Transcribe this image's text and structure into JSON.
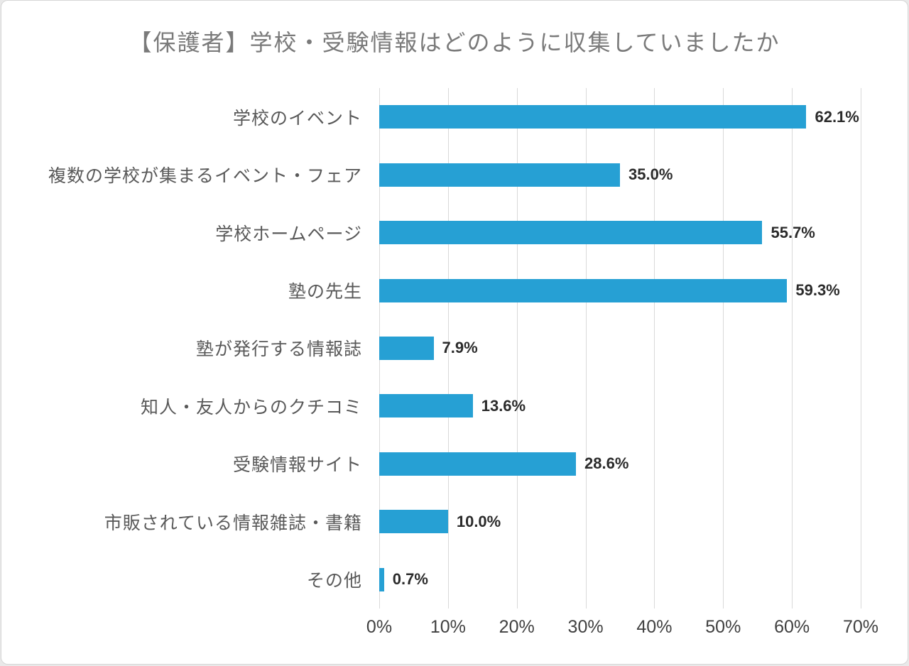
{
  "title": "【保護者】学校・受験情報はどのように収集していましたか",
  "chart_data": {
    "type": "bar",
    "orientation": "horizontal",
    "title": "【保護者】学校・受験情報はどのように収集していましたか",
    "categories": [
      "学校のイベント",
      "複数の学校が集まるイベント・フェア",
      "学校ホームページ",
      "塾の先生",
      "塾が発行する情報誌",
      "知人・友人からのクチコミ",
      "受験情報サイト",
      "市販されている情報雑誌・書籍",
      "その他"
    ],
    "values": [
      62.1,
      35.0,
      55.7,
      59.3,
      7.9,
      13.6,
      28.6,
      10.0,
      0.7
    ],
    "value_labels": [
      "62.1%",
      "35.0%",
      "55.7%",
      "59.3%",
      "7.9%",
      "13.6%",
      "28.6%",
      "10.0%",
      "0.7%"
    ],
    "xlim": [
      0,
      70
    ],
    "x_ticks": [
      "0%",
      "10%",
      "20%",
      "30%",
      "40%",
      "50%",
      "60%",
      "70%"
    ],
    "xlabel": "",
    "ylabel": "",
    "grid": true,
    "legend": "none",
    "bar_color": "#26a0d4",
    "gridline_color": "#d9d9d9",
    "label_color": "#595959",
    "value_label_color": "#2b2b2b",
    "title_color": "#7a7a7a"
  }
}
